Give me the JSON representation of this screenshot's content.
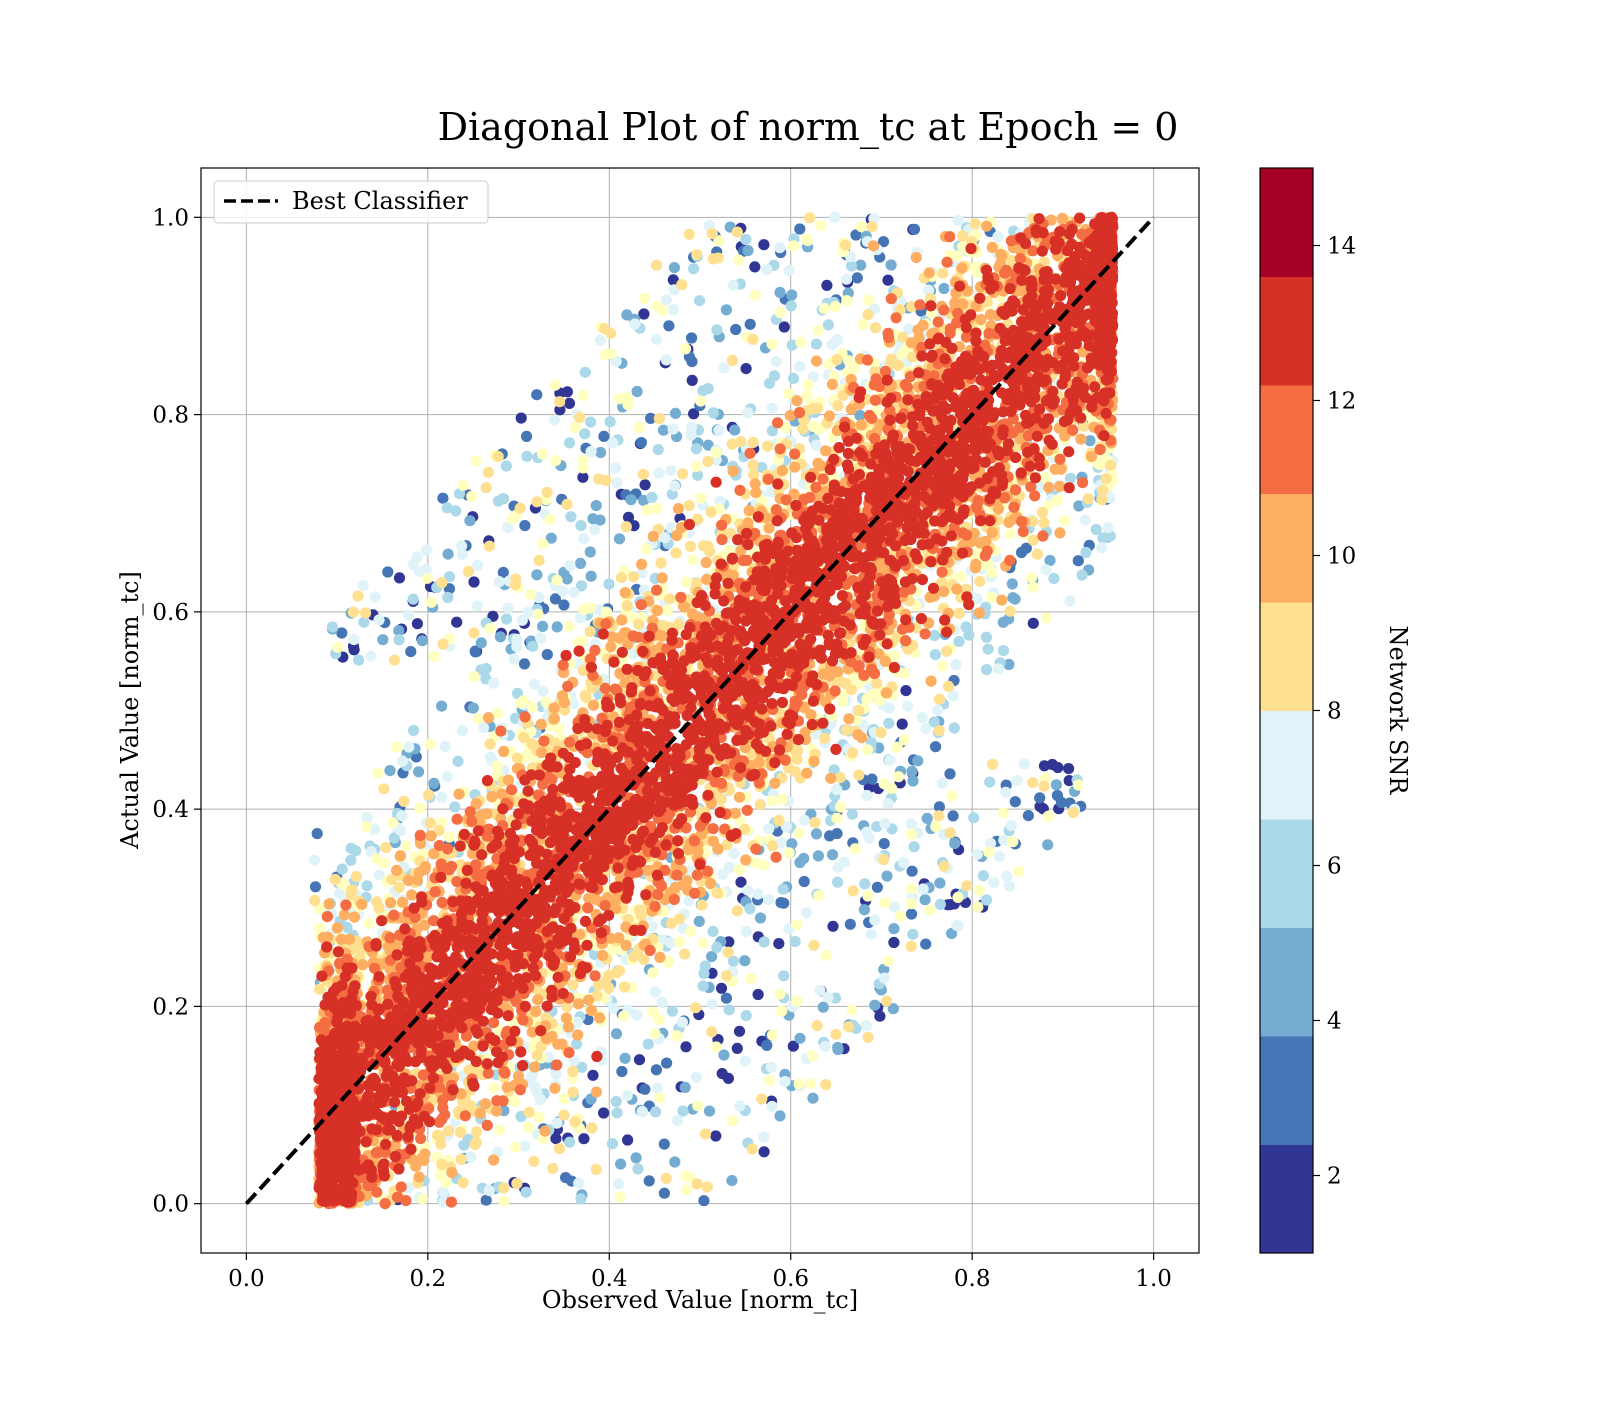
{
  "chart_data": {
    "type": "scatter",
    "title": "Diagonal Plot of norm_tc at Epoch = 0",
    "xlabel": "Observed Value [norm_tc]",
    "ylabel": "Actual Value [norm_tc]",
    "xlim": [
      -0.05,
      1.05
    ],
    "ylim": [
      -0.05,
      1.05
    ],
    "x_ticks": [
      "0.0",
      "0.2",
      "0.4",
      "0.6",
      "0.8",
      "1.0"
    ],
    "y_ticks": [
      "0.0",
      "0.2",
      "0.4",
      "0.6",
      "0.8",
      "1.0"
    ],
    "grid": true,
    "legend": {
      "position": "top-left",
      "entries": [
        {
          "label": "Best Classifier",
          "style": "dashed",
          "color": "#000000"
        }
      ]
    },
    "reference_line": {
      "name": "Best Classifier",
      "x": [
        0.0,
        1.0
      ],
      "y": [
        0.0,
        1.0
      ]
    },
    "colorbar": {
      "label": "Network SNR",
      "range": [
        1,
        15
      ],
      "ticks": [
        "2",
        "4",
        "6",
        "8",
        "10",
        "12",
        "14"
      ],
      "colors": [
        "#313695",
        "#4575b4",
        "#74add1",
        "#abd9e9",
        "#e0f3f8",
        "#ffffbf",
        "#fee090",
        "#fdae61",
        "#f46d43",
        "#d73027",
        "#a50026"
      ]
    },
    "scatter_pattern": {
      "description_of_distribution": "band around the diagonal, x from about 0.07 to 0.95; high SNR near the diagonal, low SNR at the band edges",
      "high_snr_band": "points close to the diagonal have SNR ~14+",
      "low_snr_regions": [
        "upper-left: x 0.2–0.5, y 0.6–1.0",
        "lower-right: x 0.55–0.9, y 0.0–0.4"
      ]
    }
  }
}
